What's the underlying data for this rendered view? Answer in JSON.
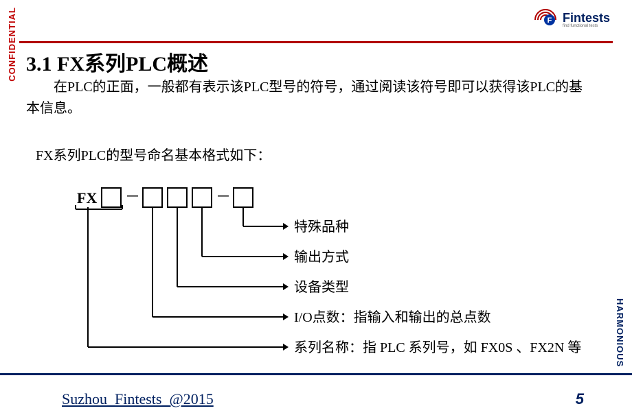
{
  "sidebar": {
    "confidential": "CONFIDENTIAL",
    "harmonious": "HARMONIOUS"
  },
  "logo": {
    "brand": "Fintests",
    "tagline": "find functional tests"
  },
  "heading": "3.1   FX系列PLC概述",
  "paragraph1": "在PLC的正面，一般都有表示该PLC型号的符号，通过阅读该符号即可以获得该PLC的基本信息。",
  "paragraph2": "FX系列PLC的型号命名基本格式如下：",
  "diagram": {
    "prefix": "FX",
    "dashes": [
      "－",
      "－"
    ],
    "boxes": {
      "count": 5,
      "box_size": 28,
      "stroke": "#000000",
      "stroke_width": 2,
      "fill": "#ffffff"
    },
    "line_stroke": "#000000",
    "line_width": 2,
    "arrow_size": 8,
    "labels": [
      {
        "text": "特殊品种"
      },
      {
        "text": "输出方式"
      },
      {
        "text": "设备类型"
      },
      {
        "text": "I/O点数：指输入和输出的总点数"
      },
      {
        "text": "系列名称：指 PLC 系列号，如 FX0S 、FX2N 等"
      }
    ],
    "font_size": 20,
    "prefix_font_size": 22,
    "prefix_font_weight": "bold"
  },
  "footer": {
    "left": "Suzhou_Fintests_@2015",
    "page": "5"
  },
  "colors": {
    "accent_red": "#b00000",
    "accent_navy": "#002060",
    "text": "#000000",
    "bg": "#ffffff"
  }
}
